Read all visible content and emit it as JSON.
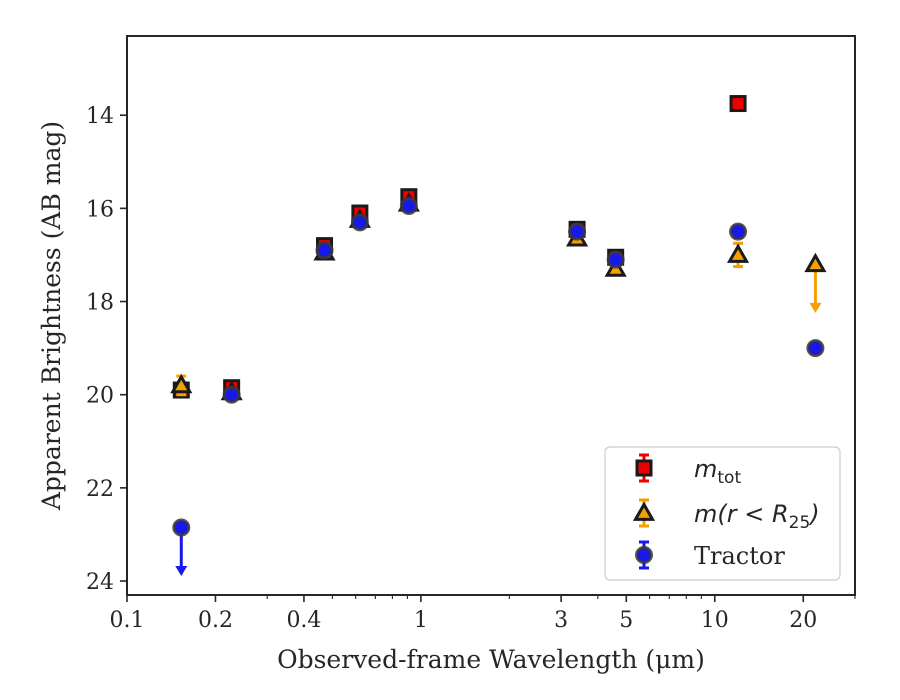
{
  "chart_data": {
    "type": "scatter",
    "xlabel": "Observed-frame Wavelength (μm)",
    "ylabel": "Apparent Brightness (AB mag)",
    "xscale": "log",
    "xlim": [
      0.1,
      30
    ],
    "ylim": [
      24.3,
      12.3
    ],
    "y_inverted": true,
    "xticks": [
      {
        "value": 0.1,
        "label": "0.1"
      },
      {
        "value": 0.2,
        "label": "0.2"
      },
      {
        "value": 0.4,
        "label": "0.4"
      },
      {
        "value": 1,
        "label": "1"
      },
      {
        "value": 3,
        "label": "3"
      },
      {
        "value": 5,
        "label": "5"
      },
      {
        "value": 10,
        "label": "10"
      },
      {
        "value": 20,
        "label": "20"
      }
    ],
    "yticks": [
      {
        "value": 14,
        "label": "14"
      },
      {
        "value": 16,
        "label": "16"
      },
      {
        "value": 18,
        "label": "18"
      },
      {
        "value": 20,
        "label": "20"
      },
      {
        "value": 22,
        "label": "22"
      },
      {
        "value": 24,
        "label": "24"
      }
    ],
    "legend_position": "lower-right",
    "series": [
      {
        "name": "m_tot",
        "legend_main": "m",
        "legend_sub": "tot",
        "marker": "square",
        "color": "#ee0000",
        "edge": "#1a1a1a",
        "points": [
          {
            "x": 0.153,
            "y": 19.9,
            "yerr": 0.08
          },
          {
            "x": 0.227,
            "y": 19.85,
            "yerr": 0.06
          },
          {
            "x": 0.47,
            "y": 16.8,
            "yerr": 0.06
          },
          {
            "x": 0.62,
            "y": 16.1,
            "yerr": 0.06
          },
          {
            "x": 0.91,
            "y": 15.75,
            "yerr": 0.06
          },
          {
            "x": 3.4,
            "y": 16.45,
            "yerr": 0.06
          },
          {
            "x": 4.6,
            "y": 17.05,
            "yerr": 0.06
          },
          {
            "x": 12.0,
            "y": 13.75,
            "yerr": 0.05
          }
        ]
      },
      {
        "name": "m(r < R_25)",
        "legend_main": "m(r < R",
        "legend_sub": "25",
        "legend_tail": ")",
        "marker": "triangle",
        "color": "#f5a000",
        "edge": "#1a1a1a",
        "points": [
          {
            "x": 0.153,
            "y": 19.8,
            "yerr": 0.2
          },
          {
            "x": 0.227,
            "y": 19.95,
            "yerr": 0.06
          },
          {
            "x": 0.47,
            "y": 16.95,
            "yerr": 0.06
          },
          {
            "x": 0.62,
            "y": 16.25,
            "yerr": 0.06
          },
          {
            "x": 0.91,
            "y": 15.9,
            "yerr": 0.06
          },
          {
            "x": 3.4,
            "y": 16.65,
            "yerr": 0.06
          },
          {
            "x": 4.6,
            "y": 17.3,
            "yerr": 0.06
          },
          {
            "x": 12.0,
            "y": 17.0,
            "yerr": 0.25
          },
          {
            "x": 22.0,
            "y": 17.2,
            "upper_limit": true,
            "arrow_to": 18.2
          }
        ]
      },
      {
        "name": "Tractor",
        "legend_main": "Tractor",
        "marker": "circle",
        "color": "#1818e8",
        "edge": "#3a3a3a",
        "points": [
          {
            "x": 0.153,
            "y": 22.85,
            "upper_limit": true,
            "arrow_to": 23.85
          },
          {
            "x": 0.227,
            "y": 20.0,
            "yerr": 0.05
          },
          {
            "x": 0.47,
            "y": 16.9,
            "yerr": 0.05
          },
          {
            "x": 0.62,
            "y": 16.3,
            "yerr": 0.05
          },
          {
            "x": 0.91,
            "y": 15.95,
            "yerr": 0.05
          },
          {
            "x": 3.4,
            "y": 16.5,
            "yerr": 0.05
          },
          {
            "x": 4.6,
            "y": 17.1,
            "yerr": 0.05
          },
          {
            "x": 12.0,
            "y": 16.5,
            "yerr": 0.12
          },
          {
            "x": 22.0,
            "y": 19.0,
            "yerr": 0.05
          }
        ]
      }
    ]
  }
}
